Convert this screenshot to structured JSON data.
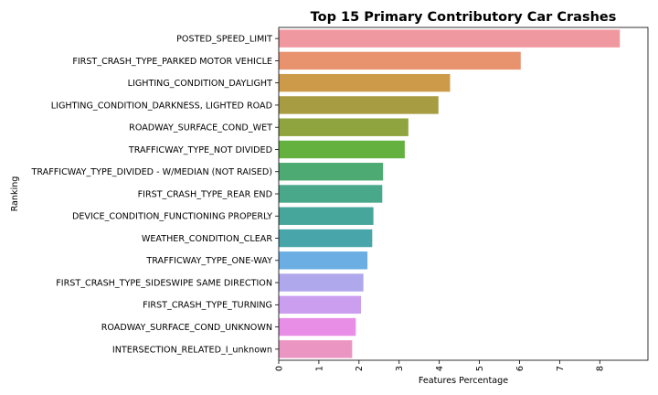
{
  "chart_data": {
    "type": "bar",
    "orientation": "horizontal",
    "title": "Top 15 Primary Contributory Car Crashes",
    "xlabel": "Features Percentage",
    "ylabel": "Ranking",
    "xlim": [
      0,
      9.2
    ],
    "xticks": [
      0,
      1,
      2,
      3,
      4,
      5,
      6,
      7,
      8
    ],
    "xtick_rotation": 90,
    "grid": false,
    "legend": "none",
    "categories": [
      "POSTED_SPEED_LIMIT",
      "FIRST_CRASH_TYPE_PARKED MOTOR VEHICLE",
      "LIGHTING_CONDITION_DAYLIGHT",
      "LIGHTING_CONDITION_DARKNESS, LIGHTED ROAD",
      "ROADWAY_SURFACE_COND_WET",
      "TRAFFICWAY_TYPE_NOT DIVIDED",
      "TRAFFICWAY_TYPE_DIVIDED - W/MEDIAN (NOT RAISED)",
      "FIRST_CRASH_TYPE_REAR END",
      "DEVICE_CONDITION_FUNCTIONING PROPERLY",
      "WEATHER_CONDITION_CLEAR",
      "TRAFFICWAY_TYPE_ONE-WAY",
      "FIRST_CRASH_TYPE_SIDESWIPE SAME DIRECTION",
      "FIRST_CRASH_TYPE_TURNING",
      "ROADWAY_SURFACE_COND_UNKNOWN",
      "INTERSECTION_RELATED_I_unknown"
    ],
    "values": [
      8.5,
      6.03,
      4.27,
      3.98,
      3.23,
      3.14,
      2.6,
      2.58,
      2.36,
      2.33,
      2.21,
      2.11,
      2.05,
      1.92,
      1.83
    ],
    "colors": [
      "#f0989f",
      "#e8926e",
      "#cc9a48",
      "#a89c42",
      "#8fa43e",
      "#64b13f",
      "#4daa72",
      "#4aa88a",
      "#47a69c",
      "#48a6ab",
      "#6aaee3",
      "#b0a8ec",
      "#cc9ef0",
      "#e88ee6",
      "#eb95c3"
    ]
  }
}
